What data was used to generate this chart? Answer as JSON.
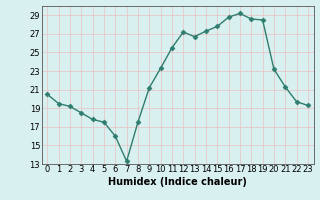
{
  "x": [
    0,
    1,
    2,
    3,
    4,
    5,
    6,
    7,
    8,
    9,
    10,
    11,
    12,
    13,
    14,
    15,
    16,
    17,
    18,
    19,
    20,
    21,
    22,
    23
  ],
  "y": [
    20.5,
    19.5,
    19.2,
    18.5,
    17.8,
    17.5,
    16.0,
    13.3,
    17.5,
    21.2,
    23.3,
    25.5,
    27.2,
    26.7,
    27.3,
    27.8,
    28.8,
    29.2,
    28.6,
    28.5,
    23.2,
    21.3,
    19.7,
    19.3
  ],
  "line_color": "#2e7d6e",
  "marker": "D",
  "marker_size": 2.5,
  "bg_color": "#d9f0f0",
  "grid_color": "#e8c8c8",
  "ylim": [
    13,
    30
  ],
  "xlim": [
    -0.5,
    23.5
  ],
  "yticks": [
    13,
    15,
    17,
    19,
    21,
    23,
    25,
    27,
    29
  ],
  "xtick_labels": [
    "0",
    "1",
    "2",
    "3",
    "4",
    "5",
    "6",
    "7",
    "8",
    "9",
    "10",
    "11",
    "12",
    "13",
    "14",
    "15",
    "16",
    "17",
    "18",
    "19",
    "20",
    "21",
    "22",
    "23"
  ],
  "xlabel": "Humidex (Indice chaleur)",
  "xlabel_fontsize": 7,
  "tick_fontsize": 6,
  "linewidth": 1.0
}
